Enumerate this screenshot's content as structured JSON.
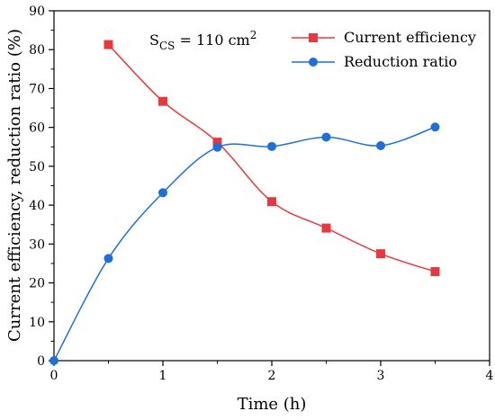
{
  "chart_data": {
    "type": "line",
    "xlabel": "Time (h)",
    "ylabel": "Current efficiency, reduction ratio (%)",
    "xlim": [
      0,
      4
    ],
    "ylim": [
      0,
      90
    ],
    "xticks": [
      0,
      1,
      2,
      3,
      4
    ],
    "yticks": [
      0,
      10,
      20,
      30,
      40,
      50,
      60,
      70,
      80,
      90
    ],
    "grid": false,
    "legend": "top-right",
    "annotation": {
      "prefix": "S",
      "subscript": "CS",
      "value": " = 110 cm",
      "superscript": "2"
    },
    "series": [
      {
        "name": "Current efficiency",
        "color": "#e8383d",
        "marker": "square",
        "x": [
          0.5,
          1.0,
          1.5,
          2.0,
          2.5,
          3.0,
          3.5
        ],
        "y": [
          81.3,
          66.7,
          56.2,
          40.9,
          34.1,
          27.5,
          22.9
        ]
      },
      {
        "name": "Reduction ratio",
        "color": "#1f6fd6",
        "marker": "circle",
        "x": [
          0,
          0.5,
          1.0,
          1.5,
          2.0,
          2.5,
          3.0,
          3.5
        ],
        "y": [
          0,
          26.3,
          43.2,
          54.9,
          55.1,
          57.5,
          55.3,
          60.1
        ]
      }
    ]
  }
}
